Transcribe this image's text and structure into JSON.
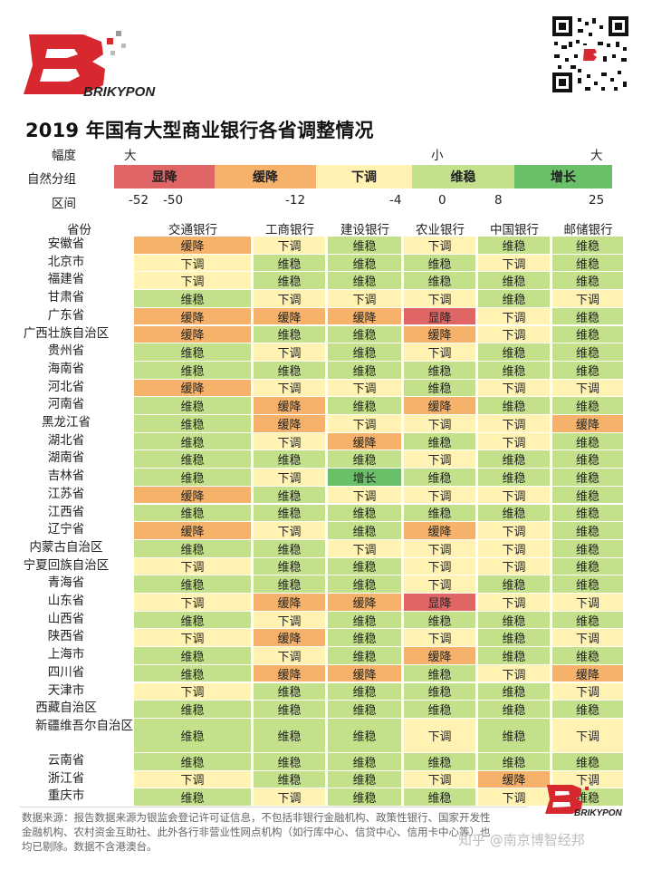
{
  "brand": {
    "name": "BRIKYPON",
    "accent": "#d7282f"
  },
  "title": "2019 年国有大型商业银行各省调整情况",
  "legend": {
    "magnitude_label": "幅度",
    "magnitude_big_left": "大",
    "magnitude_small": "小",
    "magnitude_big_right": "大",
    "group_label": "自然分组",
    "groups": [
      {
        "key": "显降",
        "color": "#e06666"
      },
      {
        "key": "缓降",
        "color": "#f6b26b"
      },
      {
        "key": "下调",
        "color": "#fff2b3"
      },
      {
        "key": "维稳",
        "color": "#c2e18a"
      },
      {
        "key": "增长",
        "color": "#6abf69"
      }
    ],
    "range_label": "区间",
    "ticks": [
      "-52",
      "-50",
      "-12",
      "-4",
      "0",
      "8",
      "25"
    ]
  },
  "chart_data": {
    "type": "table",
    "title": "2019 年国有大型商业银行各省调整情况",
    "row_header": "省份",
    "columns": [
      "交通银行",
      "工商银行",
      "建设银行",
      "农业银行",
      "中国银行",
      "邮储银行"
    ],
    "rows": [
      {
        "province": "安徽省",
        "values": [
          "缓降",
          "下调",
          "维稳",
          "下调",
          "维稳",
          "维稳"
        ]
      },
      {
        "province": "北京市",
        "values": [
          "下调",
          "维稳",
          "维稳",
          "维稳",
          "下调",
          "维稳"
        ]
      },
      {
        "province": "福建省",
        "values": [
          "下调",
          "维稳",
          "维稳",
          "维稳",
          "维稳",
          "维稳"
        ]
      },
      {
        "province": "甘肃省",
        "values": [
          "维稳",
          "下调",
          "下调",
          "下调",
          "维稳",
          "下调"
        ]
      },
      {
        "province": "广东省",
        "values": [
          "缓降",
          "缓降",
          "缓降",
          "显降",
          "下调",
          "维稳"
        ]
      },
      {
        "province": "广西壮族自治区",
        "values": [
          "缓降",
          "维稳",
          "维稳",
          "缓降",
          "下调",
          "维稳"
        ]
      },
      {
        "province": "贵州省",
        "values": [
          "维稳",
          "下调",
          "维稳",
          "下调",
          "维稳",
          "维稳"
        ]
      },
      {
        "province": "海南省",
        "values": [
          "维稳",
          "维稳",
          "维稳",
          "维稳",
          "维稳",
          "维稳"
        ]
      },
      {
        "province": "河北省",
        "values": [
          "缓降",
          "下调",
          "下调",
          "维稳",
          "下调",
          "下调"
        ]
      },
      {
        "province": "河南省",
        "values": [
          "维稳",
          "缓降",
          "维稳",
          "缓降",
          "维稳",
          "维稳"
        ]
      },
      {
        "province": "黑龙江省",
        "values": [
          "维稳",
          "缓降",
          "下调",
          "下调",
          "下调",
          "缓降"
        ]
      },
      {
        "province": "湖北省",
        "values": [
          "维稳",
          "下调",
          "缓降",
          "维稳",
          "下调",
          "维稳"
        ]
      },
      {
        "province": "湖南省",
        "values": [
          "维稳",
          "维稳",
          "维稳",
          "下调",
          "维稳",
          "维稳"
        ]
      },
      {
        "province": "吉林省",
        "values": [
          "维稳",
          "下调",
          "增长",
          "维稳",
          "维稳",
          "维稳"
        ]
      },
      {
        "province": "江苏省",
        "values": [
          "缓降",
          "维稳",
          "下调",
          "下调",
          "下调",
          "维稳"
        ]
      },
      {
        "province": "江西省",
        "values": [
          "维稳",
          "维稳",
          "维稳",
          "维稳",
          "维稳",
          "维稳"
        ]
      },
      {
        "province": "辽宁省",
        "values": [
          "缓降",
          "下调",
          "维稳",
          "缓降",
          "下调",
          "维稳"
        ]
      },
      {
        "province": "内蒙古自治区",
        "values": [
          "维稳",
          "维稳",
          "下调",
          "下调",
          "下调",
          "维稳"
        ]
      },
      {
        "province": "宁夏回族自治区",
        "values": [
          "下调",
          "维稳",
          "维稳",
          "下调",
          "下调",
          "维稳"
        ]
      },
      {
        "province": "青海省",
        "values": [
          "维稳",
          "维稳",
          "维稳",
          "下调",
          "维稳",
          "维稳"
        ]
      },
      {
        "province": "山东省",
        "values": [
          "下调",
          "缓降",
          "缓降",
          "显降",
          "下调",
          "下调"
        ]
      },
      {
        "province": "山西省",
        "values": [
          "维稳",
          "下调",
          "维稳",
          "维稳",
          "维稳",
          "维稳"
        ]
      },
      {
        "province": "陕西省",
        "values": [
          "下调",
          "缓降",
          "维稳",
          "下调",
          "维稳",
          "下调"
        ]
      },
      {
        "province": "上海市",
        "values": [
          "维稳",
          "下调",
          "维稳",
          "缓降",
          "维稳",
          "维稳"
        ]
      },
      {
        "province": "四川省",
        "values": [
          "维稳",
          "缓降",
          "缓降",
          "维稳",
          "下调",
          "缓降"
        ]
      },
      {
        "province": "天津市",
        "values": [
          "下调",
          "维稳",
          "维稳",
          "维稳",
          "维稳",
          "下调"
        ]
      },
      {
        "province": "西藏自治区",
        "values": [
          "维稳",
          "维稳",
          "维稳",
          "维稳",
          "维稳",
          "维稳"
        ]
      },
      {
        "province": "新疆维吾尔自治区",
        "values": [
          "维稳",
          "维稳",
          "维稳",
          "下调",
          "维稳",
          "下调"
        ]
      },
      {
        "province": "云南省",
        "values": [
          "维稳",
          "维稳",
          "维稳",
          "维稳",
          "维稳",
          "维稳"
        ]
      },
      {
        "province": "浙江省",
        "values": [
          "下调",
          "维稳",
          "维稳",
          "下调",
          "缓降",
          "下调"
        ]
      },
      {
        "province": "重庆市",
        "values": [
          "维稳",
          "下调",
          "维稳",
          "维稳",
          "下调",
          "维稳"
        ]
      }
    ]
  },
  "footnote": "数据来源：报告数据来源为银监会登记许可证信息，不包括非银行金融机构、政策性银行、国家开发性金融机构、农村资金互助社、此外各行非营业性网点机构（如行库中心、信贷中心、信用卡中心等）也均已剔除。数据不含港澳台。",
  "watermark": "知乎 @南京博智经邦"
}
